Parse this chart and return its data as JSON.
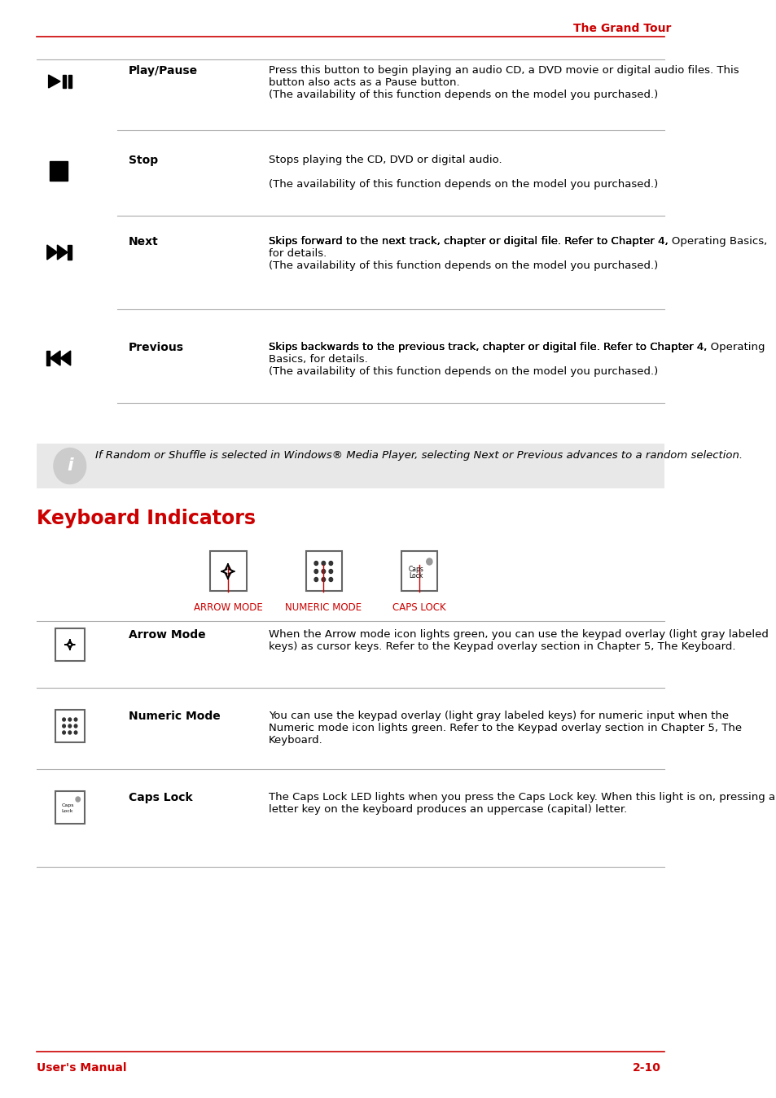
{
  "page_title": "The Grand Tour",
  "title_color": "#cc0000",
  "footer_left": "User's Manual",
  "footer_right": "2-10",
  "footer_color": "#cc0000",
  "section_heading": "Keyboard Indicators",
  "section_heading_color": "#cc0000",
  "bg_color": "#ffffff",
  "text_color": "#000000",
  "link_color": "#4472c4",
  "table_rows": [
    {
      "symbol": "play_pause",
      "label": "Play/Pause",
      "description": "Press this button to begin playing an audio CD, a DVD movie or digital audio files. This button also acts as a Pause button.\n(The availability of this function depends on the model you purchased.)"
    },
    {
      "symbol": "stop",
      "label": "Stop",
      "description": "Stops playing the CD, DVD or digital audio.\n(The availability of this function depends on the model you purchased.)"
    },
    {
      "symbol": "next",
      "label": "Next",
      "description": "Skips forward to the next track, chapter or digital file. Refer to Chapter 4, [Operating Basics], for details.\n(The availability of this function depends on the model you purchased.)"
    },
    {
      "symbol": "previous",
      "label": "Previous",
      "description": "Skips backwards to the previous track, chapter or digital file. Refer to Chapter 4, [Operating Basics], for details.\n(The availability of this function depends on the model you purchased.)"
    }
  ],
  "note_text": "If Random or Shuffle is selected in Windows® Media Player, selecting Next or Previous advances to a random selection.",
  "note_bg": "#e8e8e8",
  "kb_labels": [
    "Arrow mode",
    "Numeric mode",
    "Caps lock"
  ],
  "kb_label_color": "#cc0000",
  "kb_rows": [
    {
      "symbol": "arrow_mode",
      "label": "Arrow Mode",
      "description": "When the Arrow mode icon lights green, you can use the keypad overlay (light gray labeled keys) as cursor keys. Refer to the [Keypad overlay] section in Chapter 5, [The Keyboard]."
    },
    {
      "symbol": "numeric_mode",
      "label": "Numeric Mode",
      "description": "You can use the keypad overlay (light gray labeled keys) for numeric input when the Numeric mode icon lights green. Refer to the [Keypad overlay] section in Chapter 5, [The Keyboard]."
    },
    {
      "symbol": "caps_lock",
      "label": "Caps Lock",
      "description": "The Caps Lock LED lights when you press the Caps Lock key. When this light is on, pressing a letter key on the keyboard produces an uppercase (capital) letter."
    }
  ]
}
